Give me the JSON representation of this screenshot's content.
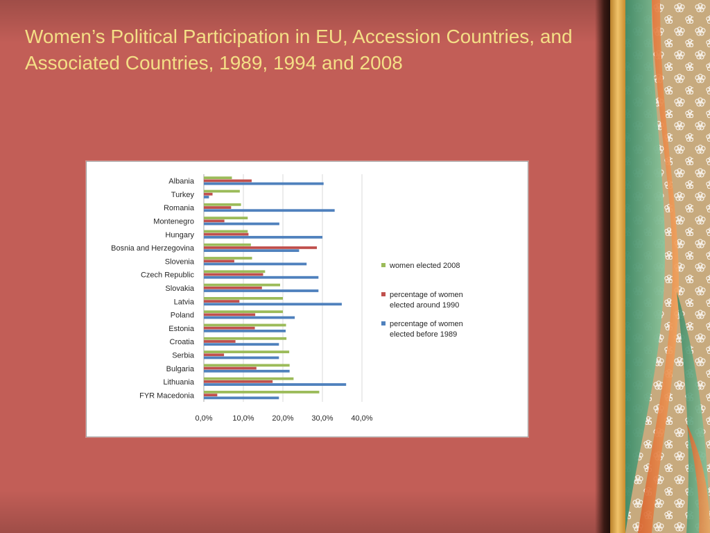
{
  "slide": {
    "title": "Women’s Political Participation in EU, Accession Countries, and Associated Countries, 1989, 1994 and 2008"
  },
  "colors": {
    "background": "#c25e57",
    "title": "#f4df86",
    "women_elected_2008": "#9bbb59",
    "around_1990": "#c0504d",
    "before_1989": "#4f81bd",
    "gridline": "#d9d9d9"
  },
  "chart_data": {
    "type": "bar",
    "orientation": "horizontal",
    "title": "",
    "xlabel": "",
    "ylabel": "",
    "xlim": [
      0,
      40
    ],
    "x_ticks": [
      "0,0%",
      "10,0%",
      "20,0%",
      "30,0%",
      "40,0%"
    ],
    "grid": true,
    "legend_position": "right",
    "categories": [
      "Albania",
      "Turkey",
      "Romania",
      "Montenegro",
      "Hungary",
      "Bosnia and Herzegovina",
      "Slovenia",
      "Czech Republic",
      "Slovakia",
      "Latvia",
      "Poland",
      "Estonia",
      "Croatia",
      "Serbia",
      "Bulgaria",
      "Lithuania",
      "FYR Macedonia"
    ],
    "series": [
      {
        "name": "women elected 2008",
        "color": "#9bbb59",
        "values": [
          7.1,
          9.1,
          9.4,
          11.1,
          11.1,
          11.9,
          12.2,
          15.5,
          19.3,
          20.0,
          20.0,
          20.8,
          20.9,
          21.6,
          21.7,
          22.7,
          29.2
        ]
      },
      {
        "name": "percentage of women elected around 1990",
        "color": "#c0504d",
        "values": [
          12.1,
          2.2,
          6.9,
          5.2,
          11.3,
          28.6,
          7.7,
          15.0,
          14.7,
          9.0,
          13.0,
          12.9,
          8.0,
          5.1,
          13.3,
          17.4,
          3.4
        ]
      },
      {
        "name": "percentage of women elected before 1989",
        "color": "#4f81bd",
        "values": [
          30.3,
          1.3,
          33.1,
          19.1,
          30.0,
          24.1,
          26.0,
          29.0,
          29.0,
          34.9,
          23.0,
          20.7,
          19.0,
          19.0,
          21.7,
          36.0,
          19.0
        ]
      }
    ],
    "legend": {
      "items": [
        {
          "lines": [
            "women elected 2008"
          ],
          "color": "#9bbb59"
        },
        {
          "lines": [
            "percentage of women",
            "elected around 1990"
          ],
          "color": "#c0504d"
        },
        {
          "lines": [
            "percentage of women",
            "elected before 1989"
          ],
          "color": "#4f81bd"
        }
      ]
    }
  }
}
